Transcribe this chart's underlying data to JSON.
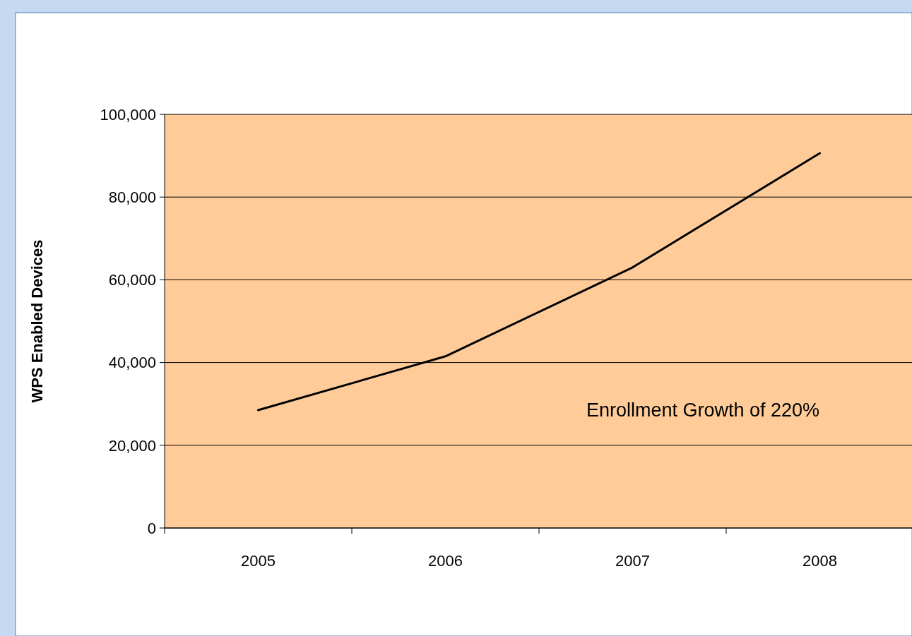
{
  "chart_data": {
    "type": "line",
    "ylabel": "WPS Enabled Devices",
    "categories": [
      "2005",
      "2006",
      "2007",
      "2008"
    ],
    "series": [
      {
        "color": "#000000",
        "values": [
          28500,
          41500,
          63000,
          90600
        ]
      }
    ],
    "ylim": [
      0,
      100000
    ],
    "yticks": [
      {
        "value": 0,
        "label": "0"
      },
      {
        "value": 20000,
        "label": "20,000"
      },
      {
        "value": 40000,
        "label": "40,000"
      },
      {
        "value": 60000,
        "label": "60,000"
      },
      {
        "value": 80000,
        "label": "80,000"
      },
      {
        "value": 100000,
        "label": "100,000"
      }
    ],
    "grid": "y",
    "marker": "none",
    "line_style": "solid",
    "annotations": [
      "Enrollment Growth of 220%"
    ]
  }
}
